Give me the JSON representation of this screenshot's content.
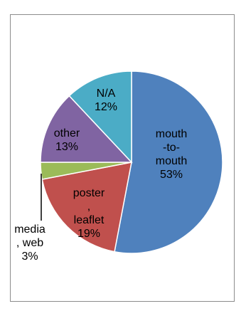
{
  "chart_data": {
    "type": "pie",
    "title": "",
    "categories": [
      "mouth-to-mouth",
      "poster, leaflet",
      "media, web",
      "other",
      "N/A"
    ],
    "values": [
      53,
      19,
      3,
      13,
      12
    ],
    "label_lines": [
      [
        "mouth",
        "-to-",
        "mouth",
        "53%"
      ],
      [
        "poster",
        ",",
        "leaflet",
        "19%"
      ],
      [
        "media",
        ", web",
        "3%"
      ],
      [
        "other",
        "13%"
      ],
      [
        "N/A",
        "12%"
      ]
    ],
    "colors": [
      "#4f81bd",
      "#c0504d",
      "#9bbb59",
      "#8064a2",
      "#4bacc6"
    ],
    "legend": "none"
  }
}
